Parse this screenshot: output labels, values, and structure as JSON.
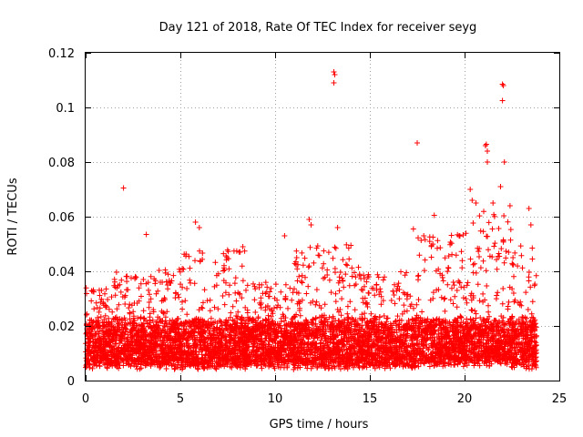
{
  "chart_data": {
    "type": "scatter",
    "title": "Day 121 of 2018, Rate Of TEC Index for receiver seyg",
    "xlabel": "GPS time / hours",
    "ylabel": "ROTI / TECUs",
    "xlim": [
      0,
      25
    ],
    "ylim": [
      0,
      0.12
    ],
    "x_ticks": [
      0,
      5,
      10,
      15,
      20,
      25
    ],
    "x_tick_labels": [
      "0",
      "5",
      "10",
      "15",
      "20",
      "25"
    ],
    "y_ticks": [
      0,
      0.02,
      0.04,
      0.06,
      0.08,
      0.1,
      0.12
    ],
    "y_tick_labels": [
      "0",
      "0.02",
      "0.04",
      "0.06",
      "0.08",
      "0.1",
      "0.12"
    ],
    "grid": true,
    "marker": "+",
    "color": "#ff0000",
    "x_range_of_data": [
      0,
      23.8
    ],
    "series": [
      {
        "name": "ROTI",
        "description": "dense cloud of ~30s samples, baseline 0.005-0.025 TECU/s with bursts",
        "bands": [
          {
            "x": [
              0.0,
              1.5
            ],
            "y_low": 0.004,
            "y_high": 0.034
          },
          {
            "x": [
              1.5,
              3.0
            ],
            "y_low": 0.004,
            "y_high": 0.04
          },
          {
            "x": [
              3.0,
              5.0
            ],
            "y_low": 0.004,
            "y_high": 0.042
          },
          {
            "x": [
              5.0,
              8.5
            ],
            "y_low": 0.004,
            "y_high": 0.048
          },
          {
            "x": [
              8.5,
              11.0
            ],
            "y_low": 0.004,
            "y_high": 0.036
          },
          {
            "x": [
              11.0,
              14.5
            ],
            "y_low": 0.004,
            "y_high": 0.05
          },
          {
            "x": [
              14.5,
              17.5
            ],
            "y_low": 0.004,
            "y_high": 0.04
          },
          {
            "x": [
              17.5,
              20.0
            ],
            "y_low": 0.005,
            "y_high": 0.054
          },
          {
            "x": [
              20.0,
              22.5
            ],
            "y_low": 0.005,
            "y_high": 0.062
          },
          {
            "x": [
              22.5,
              23.8
            ],
            "y_low": 0.004,
            "y_high": 0.05
          }
        ],
        "outliers": [
          {
            "x": 2.0,
            "y": 0.0705
          },
          {
            "x": 3.2,
            "y": 0.0535
          },
          {
            "x": 5.8,
            "y": 0.058
          },
          {
            "x": 6.0,
            "y": 0.056
          },
          {
            "x": 8.3,
            "y": 0.049
          },
          {
            "x": 10.5,
            "y": 0.053
          },
          {
            "x": 11.8,
            "y": 0.059
          },
          {
            "x": 11.9,
            "y": 0.057
          },
          {
            "x": 13.1,
            "y": 0.113
          },
          {
            "x": 13.15,
            "y": 0.112
          },
          {
            "x": 13.1,
            "y": 0.109
          },
          {
            "x": 13.3,
            "y": 0.056
          },
          {
            "x": 17.3,
            "y": 0.0555
          },
          {
            "x": 17.5,
            "y": 0.087
          },
          {
            "x": 18.4,
            "y": 0.0605
          },
          {
            "x": 20.3,
            "y": 0.07
          },
          {
            "x": 20.4,
            "y": 0.066
          },
          {
            "x": 20.6,
            "y": 0.065
          },
          {
            "x": 21.1,
            "y": 0.086
          },
          {
            "x": 21.15,
            "y": 0.0865
          },
          {
            "x": 21.2,
            "y": 0.084
          },
          {
            "x": 21.2,
            "y": 0.08
          },
          {
            "x": 21.5,
            "y": 0.065
          },
          {
            "x": 21.9,
            "y": 0.071
          },
          {
            "x": 22.0,
            "y": 0.1085
          },
          {
            "x": 22.05,
            "y": 0.108
          },
          {
            "x": 22.0,
            "y": 0.1025
          },
          {
            "x": 22.1,
            "y": 0.08
          },
          {
            "x": 22.4,
            "y": 0.064
          },
          {
            "x": 23.4,
            "y": 0.063
          },
          {
            "x": 23.5,
            "y": 0.057
          }
        ]
      }
    ]
  }
}
